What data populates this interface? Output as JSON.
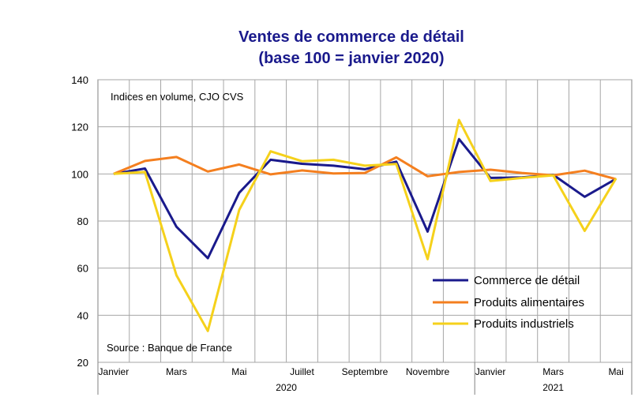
{
  "chart_data": {
    "type": "line",
    "title": "Ventes de commerce de détail",
    "subtitle": "(base 100 = janvier 2020)",
    "annotation": "Indices en volume, CJO CVS",
    "source": "Source : Banque de France",
    "ylim": [
      20,
      140
    ],
    "yticks": [
      "20",
      "40",
      "60",
      "80",
      "100",
      "120",
      "140"
    ],
    "grid": true,
    "legend_position": "bottom-right",
    "x_tick_labels": [
      "Janvier",
      "Mars",
      "Mai",
      "Juillet",
      "Septembre",
      "Novembre",
      "Janvier",
      "Mars",
      "Mai"
    ],
    "x_tick_index": [
      0,
      2,
      4,
      6,
      8,
      10,
      12,
      14,
      16
    ],
    "year_labels": [
      "2020",
      "2021"
    ],
    "months": [
      "2020-01",
      "2020-02",
      "2020-03",
      "2020-04",
      "2020-05",
      "2020-06",
      "2020-07",
      "2020-08",
      "2020-09",
      "2020-10",
      "2020-11",
      "2020-12",
      "2021-01",
      "2021-02",
      "2021-03",
      "2021-04",
      "2021-05"
    ],
    "series": [
      {
        "name": "Commerce de détail",
        "color": "#1a1a8c",
        "values": [
          100,
          102.3,
          77.6,
          64.2,
          92.0,
          106.0,
          104.3,
          103.5,
          102.0,
          105.2,
          75.5,
          114.8,
          98.3,
          98.5,
          99.6,
          90.3,
          97.9
        ]
      },
      {
        "name": "Produits alimentaires",
        "color": "#f47f1f",
        "values": [
          100,
          105.5,
          107.2,
          101.0,
          104.0,
          99.8,
          101.5,
          100.2,
          100.4,
          107.0,
          99.0,
          100.8,
          101.8,
          100.4,
          99.4,
          101.4,
          97.8
        ]
      },
      {
        "name": "Produits industriels",
        "color": "#f5d11b",
        "values": [
          100,
          100.8,
          57.0,
          33.3,
          84.7,
          109.6,
          105.4,
          106.0,
          103.5,
          104.2,
          63.8,
          122.9,
          97.0,
          98.3,
          99.4,
          75.8,
          98.1
        ]
      }
    ]
  }
}
